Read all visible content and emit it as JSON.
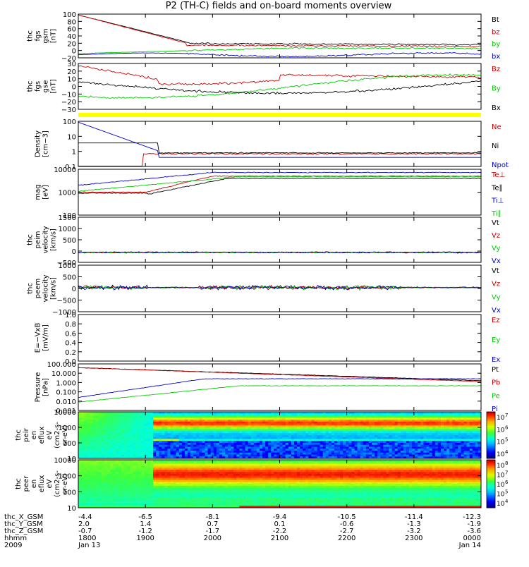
{
  "chart_data": {
    "type": "line",
    "title": "P2 (TH-C) fields and on-board moments overview",
    "time_ticks": [
      "1800",
      "1900",
      "2000",
      "2100",
      "2200",
      "2300",
      "0000"
    ],
    "time_dates": [
      "Jan 13",
      "Jan 14"
    ],
    "year_label": "2009",
    "hhmm_label": "hhmm",
    "orbit_rows": [
      {
        "label": "thc_X_GSM",
        "values": [
          "-4.4",
          "-6.5",
          "-8.1",
          "-9.4",
          "-10.5",
          "-11.4",
          "-12.3"
        ]
      },
      {
        "label": "thc_Y_GSM",
        "values": [
          "2.0",
          "1.4",
          "0.7",
          "0.1",
          "-0.6",
          "-1.3",
          "-1.9"
        ]
      },
      {
        "label": "thc_Z_GSM",
        "values": [
          "-0.7",
          "-1.2",
          "-1.7",
          "-2.2",
          "-2.7",
          "-3.2",
          "-3.6"
        ]
      }
    ],
    "panels": [
      {
        "id": "fgs-gsm",
        "ylabel_lines": [
          "thc",
          "fgs",
          "gsm",
          "[nT]"
        ],
        "scale": "linear",
        "yticks": [
          "100",
          "80",
          "60",
          "40",
          "20",
          "0",
          "−20"
        ],
        "legend": [
          "Bt",
          "bz",
          "by",
          "bx"
        ],
        "legend_colors": [
          "#000000",
          "#cc0000",
          "#00cc00",
          "#0000cc"
        ]
      },
      {
        "id": "fgs-gse",
        "ylabel_lines": [
          "thc",
          "fgs",
          "gse",
          "[nT]"
        ],
        "scale": "linear",
        "yticks": [
          "30",
          "20",
          "10",
          "0",
          "−10",
          "−20",
          "−30"
        ],
        "legend": [
          "Bz",
          "By",
          "Bx"
        ],
        "legend_colors": [
          "#cc0000",
          "#00cc00",
          "#000000"
        ]
      },
      {
        "id": "density",
        "ylabel_lines": [
          "Density",
          "[cm−3]"
        ],
        "scale": "log",
        "yticks": [
          "100",
          "10",
          "1",
          "0.1"
        ],
        "legend": [
          "Ne",
          "Ni",
          "Npot"
        ],
        "legend_colors": [
          "#cc0000",
          "#000000",
          "#0000cc"
        ]
      },
      {
        "id": "temperature",
        "ylabel_lines": [
          "mag",
          "[eV]"
        ],
        "scale": "log",
        "yticks": [
          "10000",
          "1000",
          "100"
        ],
        "legend": [
          "Te⊥",
          "Te∥",
          "Ti⊥",
          "Ti∥"
        ],
        "legend_colors": [
          "#cc0000",
          "#000000",
          "#0000cc",
          "#00cc00"
        ]
      },
      {
        "id": "peim-velocity",
        "ylabel_lines": [
          "thc",
          "peim",
          "velocity",
          "[km/s]"
        ],
        "scale": "linear",
        "yticks": [
          "1500",
          "1000",
          "500",
          "0",
          "−500"
        ],
        "legend": [
          "Vt",
          "Vz",
          "Vy",
          "Vx"
        ],
        "legend_colors": [
          "#000000",
          "#cc0000",
          "#00cc00",
          "#0000cc"
        ]
      },
      {
        "id": "peem-velocity",
        "ylabel_lines": [
          "thc",
          "peem",
          "velocity",
          "[km/s]"
        ],
        "scale": "linear",
        "yticks": [
          "1000",
          "500",
          "0",
          "−500",
          "−1000"
        ],
        "legend": [
          "Vt",
          "Vz",
          "Vy",
          "Vx"
        ],
        "legend_colors": [
          "#000000",
          "#cc0000",
          "#00cc00",
          "#0000cc"
        ]
      },
      {
        "id": "efield",
        "ylabel_lines": [
          "E=−VxB",
          "[mV/m]"
        ],
        "scale": "linear",
        "yticks": [
          "1.0",
          "0.8",
          "0.6",
          "0.4",
          "0.2",
          "0.0"
        ],
        "legend": [
          "Ez",
          "Ey",
          "Ex"
        ],
        "legend_colors": [
          "#cc0000",
          "#00cc00",
          "#0000cc"
        ]
      },
      {
        "id": "pressure",
        "ylabel_lines": [
          "Pressure",
          "[nPa]"
        ],
        "scale": "log",
        "yticks": [
          "100.000",
          "10.000",
          "1.000",
          "0.100",
          "0.010",
          "0.001"
        ],
        "legend": [
          "Pt",
          "Pb",
          "Pe",
          "Pi"
        ],
        "legend_colors": [
          "#000000",
          "#cc0000",
          "#00cc00",
          "#0000cc"
        ]
      },
      {
        "id": "peir-spectrogram",
        "ylabel_lines": [
          "thc",
          "peir",
          "en",
          "eflux",
          "eV",
          "(cm2-s-",
          "sr-eV)"
        ],
        "scale": "log",
        "type": "heatmap",
        "yticks": [
          "10000",
          "1000",
          "100",
          "10"
        ],
        "colorbar_ticks": [
          "10",
          "10",
          "10",
          "10"
        ],
        "colorbar_exps": [
          "7",
          "6",
          "5",
          "4"
        ]
      },
      {
        "id": "peer-spectrogram",
        "ylabel_lines": [
          "thc",
          "peer",
          "en",
          "eflux",
          "eV",
          "(cm2-s-",
          "sr-eV)"
        ],
        "scale": "log",
        "type": "heatmap",
        "yticks": [
          "10000",
          "1000",
          "100",
          "10"
        ],
        "colorbar_ticks": [
          "10",
          "10",
          "10",
          "10",
          "10"
        ],
        "colorbar_exps": [
          "8",
          "7",
          "6",
          "5",
          "4"
        ]
      }
    ]
  }
}
